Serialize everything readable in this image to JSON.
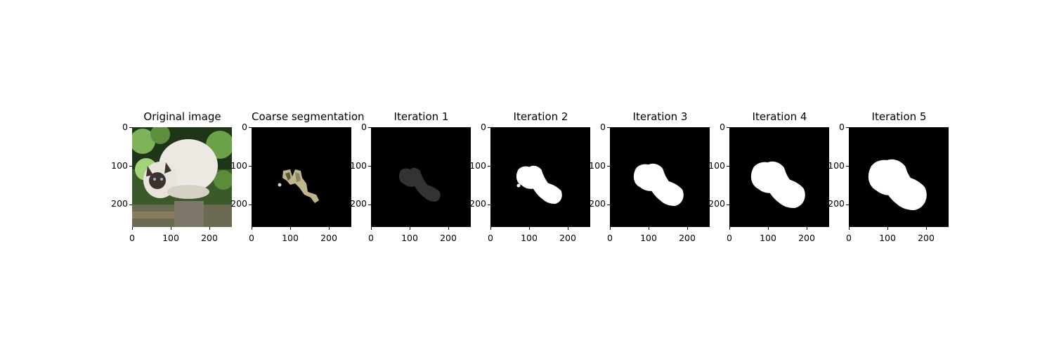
{
  "panels": [
    {
      "title": "Original image",
      "kind": "photo"
    },
    {
      "title": "Coarse segmentation",
      "kind": "coarse"
    },
    {
      "title": "Iteration 1",
      "kind": "iter",
      "brightness": 0.2,
      "dilate": 0
    },
    {
      "title": "Iteration 2",
      "kind": "iter",
      "brightness": 1.0,
      "dilate": 1
    },
    {
      "title": "Iteration 3",
      "kind": "iter",
      "brightness": 1.0,
      "dilate": 2
    },
    {
      "title": "Iteration 4",
      "kind": "iter",
      "brightness": 1.0,
      "dilate": 3
    },
    {
      "title": "Iteration 5",
      "kind": "iter",
      "brightness": 1.0,
      "dilate": 4
    }
  ],
  "ticks": {
    "x": [
      "0",
      "100",
      "200"
    ],
    "y": [
      "0",
      "100",
      "200"
    ]
  },
  "colors": {
    "mask": "#ffffff",
    "background": "#000000"
  }
}
